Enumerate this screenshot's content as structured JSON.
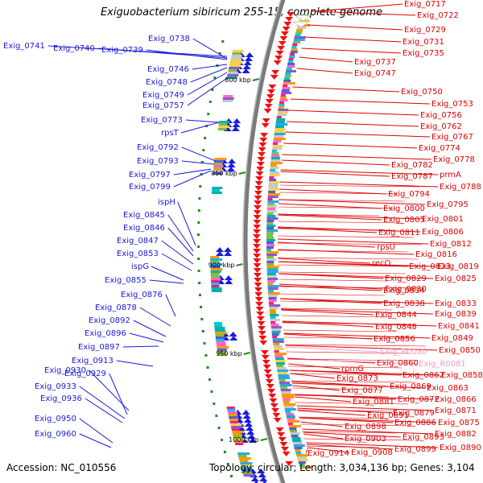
{
  "title": "Exiguobacterium sibiricum 255-15, complete genome",
  "footer": {
    "accession": "Accession: NC_010556",
    "topology": "Topology: circular; Length: 3,034,136 bp; Genes: 3,104"
  },
  "colors": {
    "reverse_strand_label": "#1a1ad9",
    "forward_strand_label": "#dd0000",
    "rna_label": "#e8a0cc",
    "backbone": "#7a7a7a",
    "tick": "#1e8c1e"
  },
  "kbp_ticks": [
    "800 kbp",
    "850 kbp",
    "900 kbp",
    "950 kbp",
    "1000 kbp"
  ],
  "left_labels": [
    "Exig_0741",
    "Exig_0740",
    "Exig_0739",
    "Exig_0738",
    "Exig_0746",
    "Exig_0748",
    "Exig_0749",
    "Exig_0757",
    "Exig_0773",
    "rpsT",
    "Exig_0792",
    "Exig_0793",
    "Exig_0797",
    "Exig_0799",
    "ispH",
    "Exig_0845",
    "Exig_0846",
    "Exig_0847",
    "Exig_0853",
    "ispG",
    "Exig_0855",
    "Exig_0876",
    "Exig_0878",
    "Exig_0892",
    "Exig_0896",
    "Exig_0897",
    "Exig_0913",
    "Exig_0930",
    "Exig_0929",
    "Exig_0933",
    "Exig_0936",
    "Exig_0950",
    "Exig_0960"
  ],
  "right_labels": [
    "Exig_0717",
    "Exig_0722",
    "Exig_0729",
    "Exig_0731",
    "Exig_0735",
    "Exig_0737",
    "Exig_0747",
    "Exig_0750",
    "Exig_0753",
    "Exig_0756",
    "Exig_0762",
    "Exig_0767",
    "Exig_0774",
    "Exig_0778",
    "Exig_0782",
    "Exig_0787",
    "prmA",
    "Exig_0788",
    "Exig_0794",
    "Exig_0795",
    "Exig_0800",
    "Exig_0801",
    "Exig_0805",
    "Exig_0806",
    "Exig_0811",
    "Exig_0812",
    "rpsU",
    "Exig_0816",
    "recO",
    "Exig_0823",
    "Exig_0819",
    "Exig_0829",
    "Exig_0825",
    "Exig_0830",
    "Exig_0834",
    "Exig_0833",
    "Exig_0838",
    "Exig_0839",
    "Exig_0844",
    "Exig_0841",
    "Exig_0848",
    "Exig_0849",
    "Exig_0856",
    "Exig_0850",
    "Exig_R0080",
    "Exig_0860",
    "Exig_R0081",
    "rpmG",
    "Exig_0862",
    "Exig_0858",
    "Exig_0873",
    "Exig_0869",
    "Exig_0863",
    "Exig_0877",
    "Exig_0881",
    "Exig_0872",
    "Exig_0866",
    "Exig_0879",
    "Exig_0871",
    "Exig_0891",
    "Exig_0886",
    "Exig_0875",
    "Exig_0898",
    "Exig_0882",
    "Exig_0903",
    "Exig_0893",
    "Exig_0899",
    "Exig_0890",
    "Exig_0914",
    "Exig_0908"
  ]
}
